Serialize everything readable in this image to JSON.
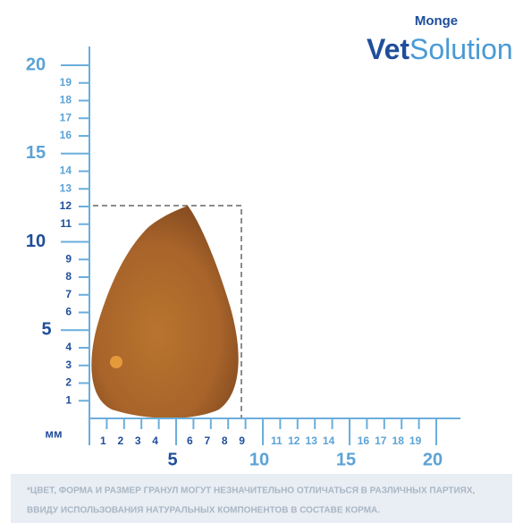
{
  "brand": "Monge",
  "product": {
    "first": "Vet",
    "second": "Solution"
  },
  "unit": "мм",
  "y_axis": {
    "minor": [
      1,
      2,
      3,
      4,
      6,
      7,
      8,
      9,
      11,
      12,
      13,
      14,
      16,
      17,
      18,
      19
    ],
    "major": [
      5,
      10,
      15,
      20
    ]
  },
  "x_axis": {
    "minor": [
      1,
      2,
      3,
      4,
      6,
      7,
      8,
      9,
      11,
      12,
      13,
      14,
      16,
      17,
      18,
      19
    ],
    "major": [
      5,
      10,
      15,
      20
    ]
  },
  "disclaimer": [
    "*ЦВЕТ, ФОРМА И РАЗМЕР ГРАНУЛ МОГУТ НЕЗНАЧИТЕЛЬНО ОТЛИЧАТЬСЯ В РАЗЛИЧНЫХ ПАРТИЯХ,",
    "ВВИДУ ИСПОЛЬЗОВАНИЯ НАТУРАЛЬНЫХ КОМПОНЕНТОВ В СОСТАВЕ КОРМА."
  ]
}
